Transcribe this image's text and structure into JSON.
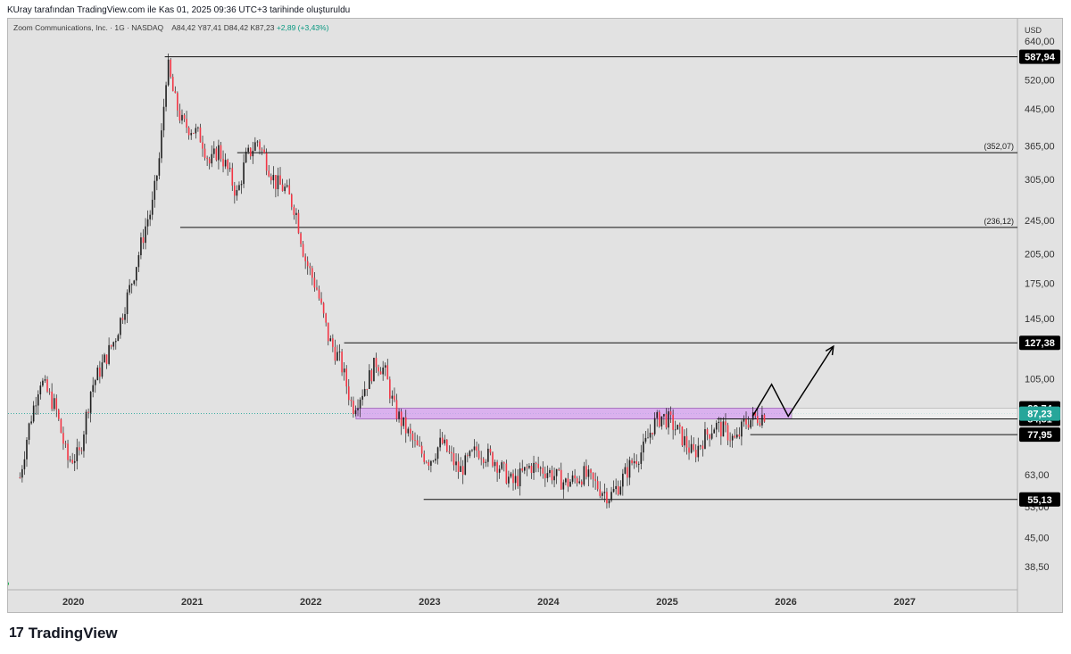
{
  "header": {
    "attribution": "KUray tarafından TradingView.com ile Kas 01, 2025 09:36 UTC+3 tarihinde oluşturuldu"
  },
  "legend": {
    "symbol": "Zoom Communications, Inc. · 1G · NASDAQ",
    "open": "A84,42",
    "high": "Y87,41",
    "low": "D84,42",
    "close": "K87,23",
    "change": "+2,89 (+3,43%)"
  },
  "footer": {
    "brand": "TradingView",
    "logo_glyph": "17"
  },
  "colors": {
    "up": "#089981",
    "down": "#f23645",
    "candle": "#1e1e1e",
    "zone_fill": "#d8a8f0",
    "last_price_tag": "#26a69a",
    "label_tag": "#000000"
  },
  "chart_data": {
    "type": "candlestick",
    "currency": "USD",
    "scale": "log",
    "ylim": [
      35,
      700
    ],
    "x_range": [
      2019.45,
      2027.95
    ],
    "x_ticks": [
      "2020",
      "2021",
      "2022",
      "2023",
      "2024",
      "2025",
      "2026",
      "2027"
    ],
    "y_ticks": [
      "640,00",
      "520,00",
      "445,00",
      "365,00",
      "305,00",
      "245,00",
      "205,00",
      "175,00",
      "145,00",
      "105,00",
      "63,00",
      "53,00",
      "45,00",
      "38,50"
    ],
    "y_tick_values": [
      640,
      520,
      445,
      365,
      305,
      245,
      205,
      175,
      145,
      105,
      63,
      53,
      45,
      38.5
    ],
    "last_price": {
      "value": 87.23,
      "label": "87,23"
    },
    "price_path": [
      [
        2019.55,
        62
      ],
      [
        2019.62,
        80
      ],
      [
        2019.72,
        105
      ],
      [
        2019.85,
        90
      ],
      [
        2019.95,
        68
      ],
      [
        2020.05,
        70
      ],
      [
        2020.15,
        100
      ],
      [
        2020.35,
        130
      ],
      [
        2020.5,
        180
      ],
      [
        2020.62,
        245
      ],
      [
        2020.66,
        260
      ],
      [
        2020.73,
        350
      ],
      [
        2020.79,
        570
      ],
      [
        2020.85,
        470
      ],
      [
        2020.92,
        410
      ],
      [
        2021.0,
        400
      ],
      [
        2021.08,
        380
      ],
      [
        2021.15,
        330
      ],
      [
        2021.22,
        360
      ],
      [
        2021.3,
        320
      ],
      [
        2021.38,
        280
      ],
      [
        2021.45,
        340
      ],
      [
        2021.55,
        375
      ],
      [
        2021.62,
        340
      ],
      [
        2021.7,
        300
      ],
      [
        2021.78,
        290
      ],
      [
        2021.87,
        260
      ],
      [
        2021.95,
        200
      ],
      [
        2022.05,
        170
      ],
      [
        2022.15,
        130
      ],
      [
        2022.25,
        115
      ],
      [
        2022.35,
        90
      ],
      [
        2022.45,
        100
      ],
      [
        2022.55,
        115
      ],
      [
        2022.62,
        110
      ],
      [
        2022.7,
        90
      ],
      [
        2022.8,
        80
      ],
      [
        2022.9,
        72
      ],
      [
        2023.0,
        68
      ],
      [
        2023.1,
        75
      ],
      [
        2023.25,
        64
      ],
      [
        2023.4,
        72
      ],
      [
        2023.55,
        68
      ],
      [
        2023.7,
        60
      ],
      [
        2023.85,
        66
      ],
      [
        2024.0,
        64
      ],
      [
        2024.15,
        60
      ],
      [
        2024.3,
        63
      ],
      [
        2024.45,
        58
      ],
      [
        2024.52,
        56
      ],
      [
        2024.6,
        60
      ],
      [
        2024.7,
        67
      ],
      [
        2024.8,
        72
      ],
      [
        2024.88,
        82
      ],
      [
        2024.95,
        86
      ],
      [
        2025.02,
        84
      ],
      [
        2025.08,
        80
      ],
      [
        2025.15,
        75
      ],
      [
        2025.22,
        70
      ],
      [
        2025.3,
        76
      ],
      [
        2025.4,
        82
      ],
      [
        2025.5,
        79
      ],
      [
        2025.58,
        75
      ],
      [
        2025.65,
        83
      ],
      [
        2025.72,
        85
      ],
      [
        2025.78,
        86
      ],
      [
        2025.83,
        87.23
      ]
    ],
    "horizontal_levels": [
      {
        "value": 587.94,
        "from": 2020.77,
        "label": "587,94",
        "tag": "axis"
      },
      {
        "value": 352.07,
        "from": 2021.38,
        "label": "(352,07)",
        "tag": "inline"
      },
      {
        "value": 236.12,
        "from": 2020.9,
        "label": "(236,12)",
        "tag": "inline"
      },
      {
        "value": 127.38,
        "from": 2022.28,
        "label": "127,38",
        "tag": "axis"
      },
      {
        "value": 84.81,
        "from": 2025.42,
        "label": "84,81",
        "tag": "axis"
      },
      {
        "value": 77.95,
        "from": 2025.7,
        "label": "77,95",
        "tag": "axis"
      },
      {
        "value": 55.13,
        "from": 2022.95,
        "label": "55,13",
        "tag": "axis"
      }
    ],
    "support_zone": {
      "top": 89.74,
      "bottom": 84.81,
      "from": 2022.38,
      "to": 2027.95,
      "label": "89,74"
    },
    "projection_path": [
      [
        2025.72,
        86
      ],
      [
        2025.88,
        102
      ],
      [
        2026.02,
        86
      ],
      [
        2026.4,
        125
      ]
    ]
  }
}
